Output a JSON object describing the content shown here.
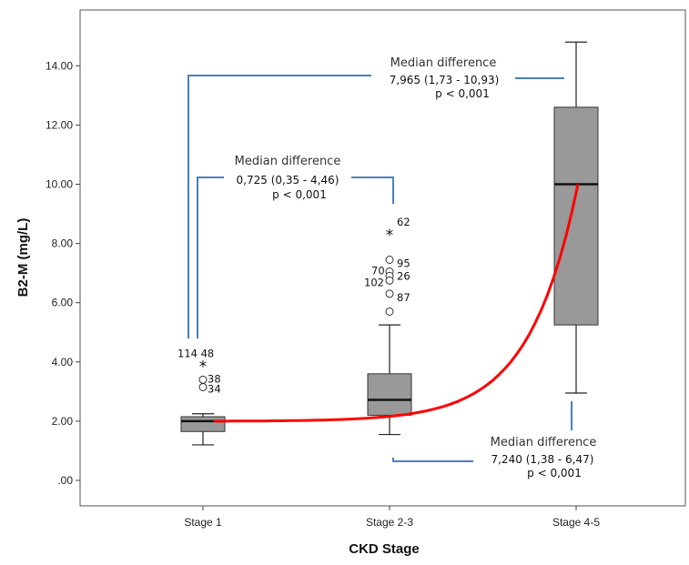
{
  "chart_data": {
    "type": "box",
    "xlabel": "CKD Stage",
    "ylabel": "B2-M (mg/L)",
    "ylim": [
      -0.9,
      16.3
    ],
    "yticks": [
      {
        "value": 0,
        "label": ".00"
      },
      {
        "value": 2,
        "label": "2.00"
      },
      {
        "value": 4,
        "label": "4.00"
      },
      {
        "value": 6,
        "label": "6.00"
      },
      {
        "value": 8,
        "label": "8.00"
      },
      {
        "value": 10,
        "label": "10.00"
      },
      {
        "value": 12,
        "label": "12.00"
      },
      {
        "value": 14,
        "label": "14.00"
      }
    ],
    "grid": false,
    "box_color": "#999999",
    "trend_color": "#ff0000",
    "bracket_color": "#4a7fc1",
    "categories": [
      "Stage 1",
      "Stage 2-3",
      "Stage 4-5"
    ],
    "boxes": [
      {
        "category": "Stage 1",
        "whisker_low": 1.2,
        "q1": 1.65,
        "median": 2.0,
        "q3": 2.15,
        "whisker_high": 2.25,
        "outliers": [
          {
            "value": 3.85,
            "marker": "star",
            "label": "114  48"
          },
          {
            "value": 3.4,
            "marker": "circle",
            "label": "38"
          },
          {
            "value": 3.15,
            "marker": "circle",
            "label": "34"
          }
        ]
      },
      {
        "category": "Stage 2-3",
        "whisker_low": 1.55,
        "q1": 2.2,
        "median": 2.72,
        "q3": 3.6,
        "whisker_high": 5.25,
        "outliers": [
          {
            "value": 8.3,
            "marker": "star",
            "label": "62"
          },
          {
            "value": 7.45,
            "marker": "circle",
            "label": "95"
          },
          {
            "value": 7.05,
            "marker": "circle",
            "label": "70"
          },
          {
            "value": 6.9,
            "marker": "circle",
            "label": "26"
          },
          {
            "value": 6.75,
            "marker": "circle",
            "label": "102"
          },
          {
            "value": 6.3,
            "marker": "circle",
            "label": "87"
          },
          {
            "value": 5.7,
            "marker": "circle",
            "label": ""
          }
        ]
      },
      {
        "category": "Stage 4-5",
        "whisker_low": 2.95,
        "q1": 5.25,
        "median": 10.0,
        "q3": 12.6,
        "whisker_high": 14.8,
        "outliers": []
      }
    ],
    "annotations": [
      {
        "between": [
          "Stage 1",
          "Stage 2-3"
        ],
        "title": "Median difference",
        "ci": "0,725 (0,35 - 4,46)",
        "p": "p < 0,001"
      },
      {
        "between": [
          "Stage 1",
          "Stage 4-5"
        ],
        "title": "Median difference",
        "ci": "7,965 (1,73 - 10,93)",
        "p": "p < 0,001"
      },
      {
        "between": [
          "Stage 2-3",
          "Stage 4-5"
        ],
        "title": "Median difference",
        "ci": "7,240 (1,38 - 6,47)",
        "p": "p < 0,001"
      }
    ]
  }
}
